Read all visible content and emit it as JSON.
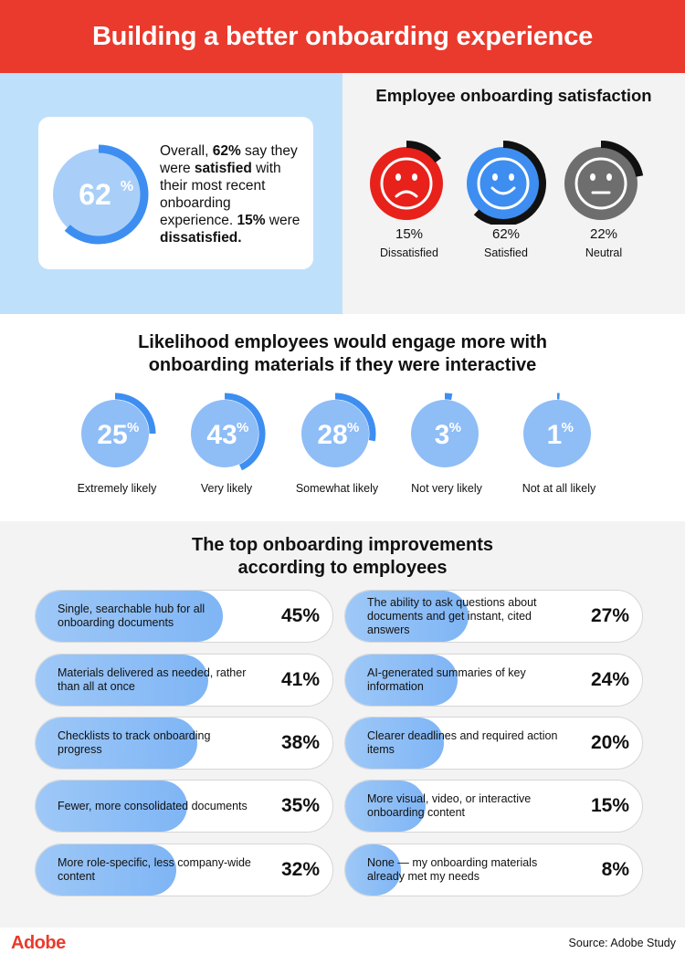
{
  "header": {
    "title": "Building a better onboarding experience"
  },
  "summary": {
    "pct_value": 62,
    "pct_number": "62",
    "pct_sign": "%",
    "t1": "Overall, ",
    "t2": "62%",
    "t3": " say they were ",
    "t4": "satisfied",
    "t5": " with their most recent onboarding experience. ",
    "t6": "15%",
    "t7": " were ",
    "t8": "dissatisfied."
  },
  "satisfaction": {
    "title": "Employee onboarding satisfaction",
    "faces": [
      {
        "pct": "15%",
        "label": "Dissatisfied",
        "mood": "sad",
        "color": "#e8211b",
        "value": 15
      },
      {
        "pct": "62%",
        "label": "Satisfied",
        "mood": "happy",
        "color": "#3d8ef0",
        "value": 62
      },
      {
        "pct": "22%",
        "label": "Neutral",
        "mood": "neutral",
        "color": "#6e6e6e",
        "value": 22
      }
    ]
  },
  "chart_data": [
    {
      "type": "pie",
      "title": "Likelihood employees would engage more with onboarding materials if they were interactive",
      "title_line1": "Likelihood employees would engage more with",
      "title_line2": "onboarding materials if they were interactive",
      "categories": [
        "Extremely likely",
        "Very likely",
        "Somewhat likely",
        "Not very likely",
        "Not at all likely"
      ],
      "values": [
        25,
        43,
        28,
        3,
        1
      ],
      "labels": [
        "25",
        "43",
        "28",
        "3",
        "1"
      ],
      "unit": "%"
    },
    {
      "type": "bar",
      "title": "The top onboarding improvements according to employees",
      "title_line1": "The top onboarding improvements",
      "title_line2": "according to employees",
      "categories": [
        "Single, searchable hub for all onboarding documents",
        "Materials delivered as needed, rather than all at once",
        "Checklists to track onboarding progress",
        "Fewer, more consolidated documents",
        "More role-specific, less company-wide content",
        "The ability to ask questions about documents and get instant, cited answers",
        "AI-generated summaries of key information",
        "Clearer deadlines and required action items",
        "More visual, video, or interactive onboarding content",
        "None — my onboarding materials already met my needs"
      ],
      "values": [
        45,
        41,
        38,
        35,
        32,
        27,
        24,
        20,
        15,
        8
      ],
      "labels": [
        "45%",
        "41%",
        "38%",
        "35%",
        "32%",
        "27%",
        "24%",
        "20%",
        "15%",
        "8%"
      ],
      "xlim": [
        0,
        100
      ]
    }
  ],
  "colors": {
    "accent_red": "#ea3a2d",
    "accent_blue": "#3d8ef0",
    "light_blue": "#7fb5f5"
  },
  "footer": {
    "logo": "Adobe",
    "source": "Source: Adobe Study"
  }
}
